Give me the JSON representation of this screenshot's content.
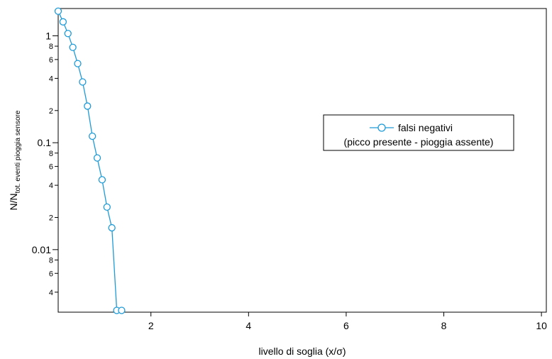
{
  "chart_data": {
    "type": "line",
    "xlabel": "livello di soglia (x/σ)",
    "ylabel": {
      "main": "N/N",
      "sub": "tot. eventi pioggia sensore"
    },
    "xlim": [
      0.1,
      10.1
    ],
    "ylim": [
      0.0026,
      1.8
    ],
    "yscale": "log",
    "x_ticks": [
      {
        "value": 2,
        "label": "2"
      },
      {
        "value": 4,
        "label": "4"
      },
      {
        "value": 6,
        "label": "6"
      },
      {
        "value": 8,
        "label": "8"
      },
      {
        "value": 10,
        "label": "10"
      }
    ],
    "y_major_ticks": [
      {
        "value": 1,
        "label": "1"
      },
      {
        "value": 0.1,
        "label": "0.1"
      },
      {
        "value": 0.01,
        "label": "0.01"
      }
    ],
    "y_minor_ticks": [
      {
        "value": 0.8,
        "label": "8"
      },
      {
        "value": 0.6,
        "label": "6"
      },
      {
        "value": 0.4,
        "label": "4"
      },
      {
        "value": 0.2,
        "label": "2"
      },
      {
        "value": 0.08,
        "label": "8"
      },
      {
        "value": 0.06,
        "label": "6"
      },
      {
        "value": 0.04,
        "label": "4"
      },
      {
        "value": 0.02,
        "label": "2"
      },
      {
        "value": 0.008,
        "label": "8"
      },
      {
        "value": 0.006,
        "label": "6"
      },
      {
        "value": 0.004,
        "label": "4"
      }
    ],
    "grid": false,
    "legend": {
      "position": "right-center",
      "lines": [
        "falsi negativi",
        "(picco presente - pioggia assente)"
      ]
    },
    "series": [
      {
        "name": "falsi negativi (picco presente - pioggia assente)",
        "color": "#1e9bd7",
        "marker": "open-circle",
        "x": [
          0.1,
          0.2,
          0.3,
          0.4,
          0.5,
          0.6,
          0.7,
          0.8,
          0.9,
          1.0,
          1.1,
          1.2,
          1.3,
          1.4
        ],
        "y": [
          1.7,
          1.35,
          1.05,
          0.78,
          0.55,
          0.37,
          0.22,
          0.115,
          0.072,
          0.045,
          0.025,
          0.016,
          0.0027,
          0.0027
        ]
      }
    ]
  }
}
